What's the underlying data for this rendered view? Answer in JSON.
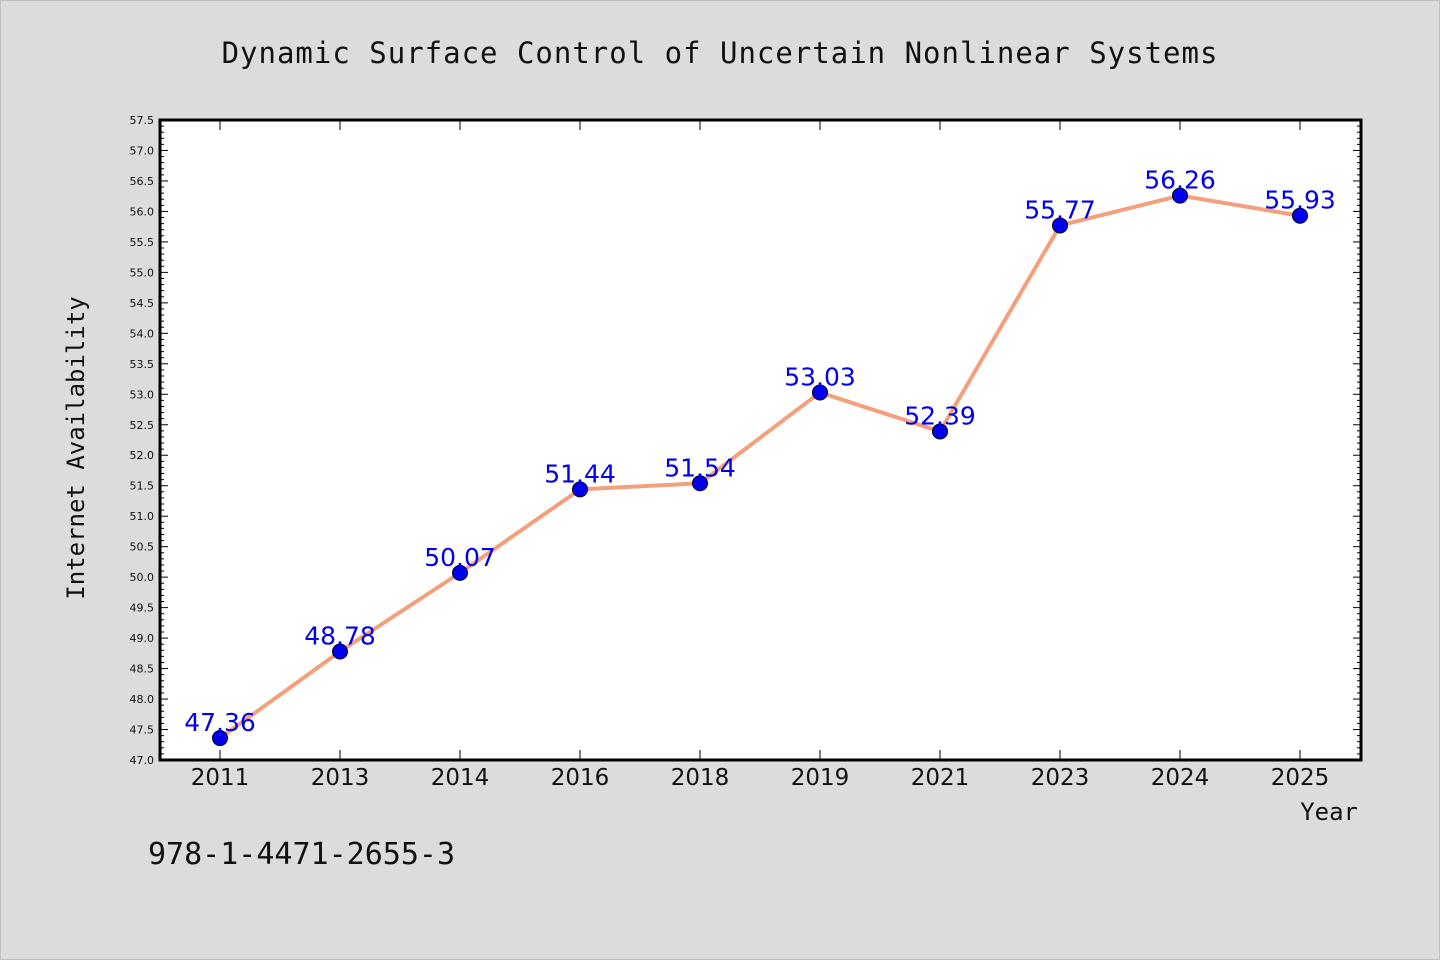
{
  "chart_data": {
    "type": "line",
    "title": "Dynamic Surface Control of Uncertain Nonlinear Systems",
    "xlabel": "Year",
    "ylabel": "Internet Availability",
    "categories": [
      "2011",
      "2013",
      "2014",
      "2016",
      "2018",
      "2019",
      "2021",
      "2023",
      "2024",
      "2025"
    ],
    "series": [
      {
        "values": [
          47.36,
          48.78,
          50.07,
          51.44,
          51.54,
          53.03,
          52.39,
          55.77,
          56.26,
          55.93
        ]
      }
    ],
    "data_labels": [
      "47.36",
      "48.78",
      "50.07",
      "51.44",
      "51.54",
      "53.03",
      "52.39",
      "55.77",
      "56.26",
      "55.93"
    ],
    "ylim": [
      47.0,
      57.5
    ],
    "ytick_step": 0.5,
    "grid": false,
    "colors": {
      "line": "#f4a07c",
      "marker": "#0000ee",
      "label": "#0000ee",
      "background": "#dcdcdc",
      "plot_background": "#ffffff"
    }
  },
  "footer": {
    "isbn": "978-1-4471-2655-3"
  }
}
